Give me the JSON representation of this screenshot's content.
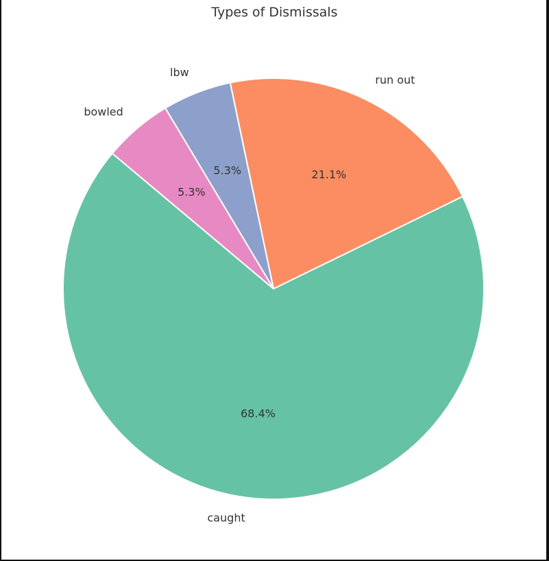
{
  "chart_data": {
    "type": "pie",
    "title": "Types of Dismissals",
    "categories": [
      "caught",
      "run out",
      "lbw",
      "bowled"
    ],
    "values": [
      68.4,
      21.1,
      5.3,
      5.3
    ],
    "percent_labels": [
      "68.4%",
      "21.1%",
      "5.3%",
      "5.3%"
    ],
    "colors": [
      "#66c2a5",
      "#fc8d62",
      "#8da0cb",
      "#e78ac3"
    ],
    "startangle_deg": 140,
    "direction": "counterclockwise",
    "legend": "none"
  }
}
